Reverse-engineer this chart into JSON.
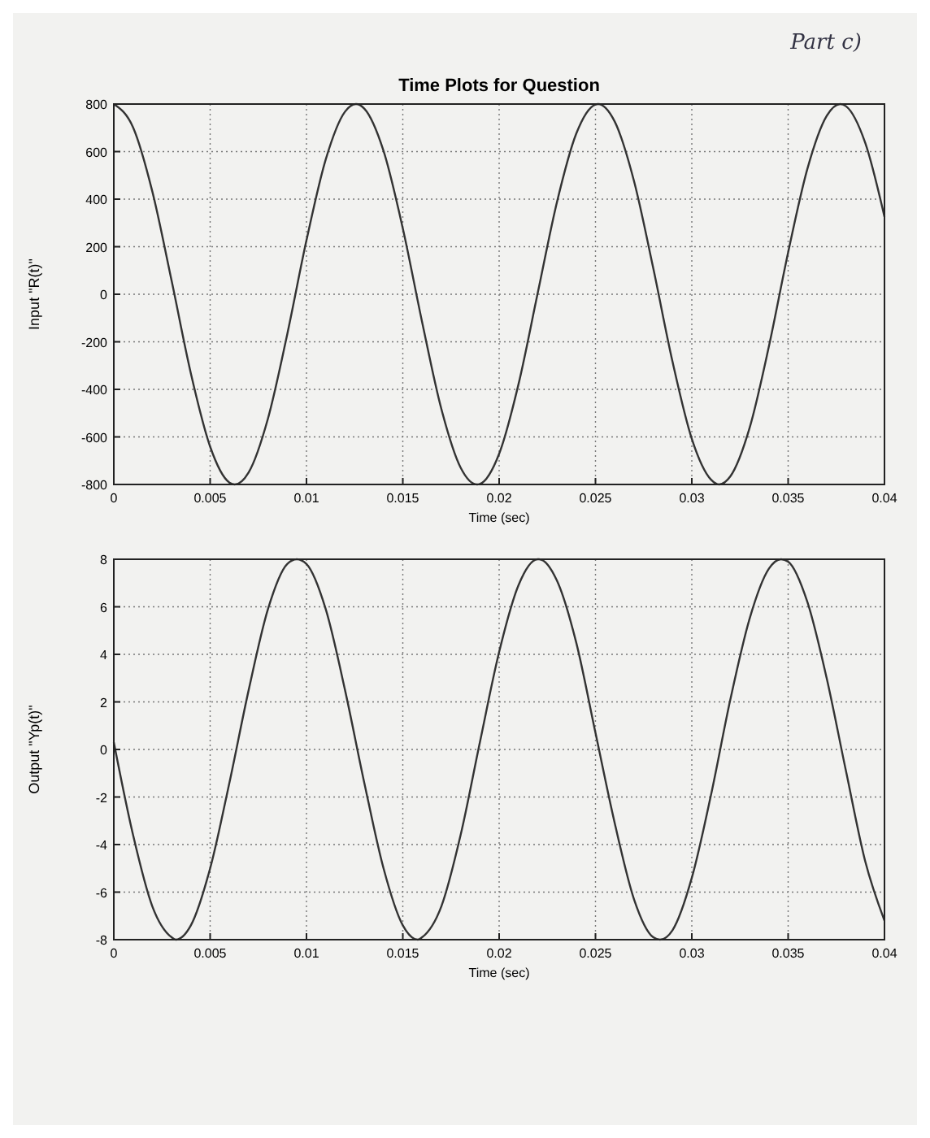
{
  "chart_data": [
    {
      "type": "line",
      "title": "Time Plots for Question",
      "xlabel": "Time (sec)",
      "ylabel": "Input \"R(t)\"",
      "annotations": [
        "Part c)"
      ],
      "grid": true,
      "line_style": "solid",
      "xlim": [
        0,
        0.04
      ],
      "xticks": [
        0,
        0.005,
        0.01,
        0.015,
        0.02,
        0.025,
        0.03,
        0.035,
        0.04
      ],
      "ylim": [
        -800,
        800
      ],
      "yticks": [
        -800,
        -600,
        -400,
        -200,
        0,
        200,
        400,
        600,
        800
      ],
      "series": [
        {
          "color": "#333333",
          "x": [
            0,
            0.001,
            0.002,
            0.003,
            0.004,
            0.005,
            0.006,
            0.00628,
            0.007,
            0.008,
            0.009,
            0.01,
            0.011,
            0.012,
            0.01257,
            0.013,
            0.014,
            0.015,
            0.016,
            0.017,
            0.018,
            0.01885,
            0.019,
            0.02,
            0.021,
            0.022,
            0.023,
            0.024,
            0.025,
            0.02513,
            0.026,
            0.027,
            0.028,
            0.029,
            0.03,
            0.031,
            0.03142,
            0.032,
            0.033,
            0.034,
            0.035,
            0.036,
            0.037,
            0.0377,
            0.038,
            0.039,
            0.04
          ],
          "values": [
            800,
            702,
            432,
            57,
            -333,
            -641,
            -792,
            -800,
            -749,
            -523,
            -169,
            227,
            567,
            768,
            800,
            781,
            603,
            277,
            -116,
            -482,
            -729,
            -800,
            -798,
            -671,
            -380,
            4,
            387,
            675,
            798,
            800,
            726,
            476,
            109,
            -284,
            -608,
            -780,
            -800,
            -766,
            -562,
            -220,
            176,
            528,
            750,
            800,
            791,
            637,
            326
          ]
        }
      ]
    },
    {
      "type": "line",
      "xlabel": "Time (sec)",
      "ylabel": "Output \"Yp(t)\"",
      "grid": true,
      "line_style": "solid",
      "xlim": [
        0,
        0.04
      ],
      "xticks": [
        0,
        0.005,
        0.01,
        0.015,
        0.02,
        0.025,
        0.03,
        0.035,
        0.04
      ],
      "ylim": [
        -8,
        8
      ],
      "yticks": [
        -8,
        -6,
        -4,
        -2,
        0,
        2,
        4,
        6,
        8
      ],
      "series": [
        {
          "color": "#333333",
          "x": [
            0,
            0.001,
            0.002,
            0.003,
            0.00322,
            0.004,
            0.005,
            0.006,
            0.007,
            0.008,
            0.009,
            0.0095,
            0.01,
            0.011,
            0.012,
            0.013,
            0.014,
            0.015,
            0.01578,
            0.016,
            0.017,
            0.018,
            0.019,
            0.02,
            0.021,
            0.022,
            0.02207,
            0.023,
            0.024,
            0.025,
            0.026,
            0.027,
            0.028,
            0.02835,
            0.029,
            0.03,
            0.031,
            0.032,
            0.033,
            0.034,
            0.03463,
            0.035,
            0.036,
            0.037,
            0.038,
            0.039,
            0.04
          ],
          "values": [
            0.3,
            -3.6,
            -6.6,
            -7.9,
            -8,
            -7.4,
            -5.0,
            -1.4,
            2.5,
            5.9,
            7.8,
            8,
            7.8,
            5.9,
            2.5,
            -1.4,
            -5.0,
            -7.4,
            -8,
            -7.9,
            -6.6,
            -3.6,
            0.3,
            4.1,
            6.9,
            8.0,
            8,
            7.1,
            4.5,
            0.7,
            -3.1,
            -6.3,
            -7.9,
            -8,
            -7.6,
            -5.4,
            -1.9,
            2.1,
            5.5,
            7.6,
            8,
            7.9,
            6.2,
            3.0,
            -0.9,
            -4.7,
            -7.2
          ]
        }
      ]
    }
  ]
}
